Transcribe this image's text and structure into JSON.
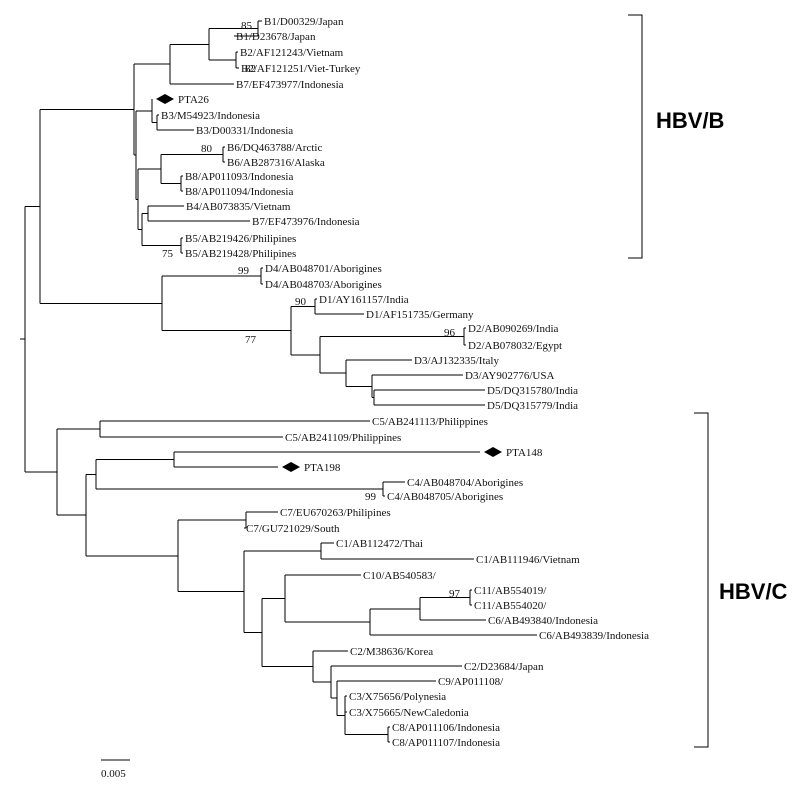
{
  "tree": {
    "type": "phylogenetic-tree",
    "scale_bar_label": "0.005",
    "leaves": [
      {
        "id": "B1_D00329",
        "label": "B1/D00329/Japan"
      },
      {
        "id": "B1_D23678",
        "label": "B1/D23678/Japan"
      },
      {
        "id": "B2_AF121243",
        "label": "B2/AF121243/Vietnam"
      },
      {
        "id": "B2_AF121251",
        "label": "B2/AF121251/Viet-Turkey"
      },
      {
        "id": "B7_EF473977",
        "label": "B7/EF473977/Indonesia"
      },
      {
        "id": "PTA26",
        "label": "PTA26",
        "marker": "diamond"
      },
      {
        "id": "B3_M54923",
        "label": "B3/M54923/Indonesia"
      },
      {
        "id": "B3_D00331",
        "label": "B3/D00331/Indonesia"
      },
      {
        "id": "B6_DQ463788",
        "label": "B6/DQ463788/Arctic"
      },
      {
        "id": "B6_AB287316",
        "label": "B6/AB287316/Alaska"
      },
      {
        "id": "B8_AP011093",
        "label": "B8/AP011093/Indonesia"
      },
      {
        "id": "B8_AP011094",
        "label": "B8/AP011094/Indonesia"
      },
      {
        "id": "B4_AB073835",
        "label": "B4/AB073835/Vietnam"
      },
      {
        "id": "B7_EF473976",
        "label": "B7/EF473976/Indonesia"
      },
      {
        "id": "B5_AB219426",
        "label": "B5/AB219426/Philipines"
      },
      {
        "id": "B5_AB219428",
        "label": "B5/AB219428/Philipines"
      },
      {
        "id": "D4_AB048701",
        "label": "D4/AB048701/Aborigines"
      },
      {
        "id": "D4_AB048703",
        "label": "D4/AB048703/Aborigines"
      },
      {
        "id": "D1_AY161157",
        "label": "D1/AY161157/India"
      },
      {
        "id": "D1_AF151735",
        "label": "D1/AF151735/Germany"
      },
      {
        "id": "D2_AB090269",
        "label": "D2/AB090269/India"
      },
      {
        "id": "D2_AB078032",
        "label": "D2/AB078032/Egypt"
      },
      {
        "id": "D3_AJ132335",
        "label": "D3/AJ132335/Italy"
      },
      {
        "id": "D3_AY902776",
        "label": "D3/AY902776/USA"
      },
      {
        "id": "D5_DQ315780",
        "label": "D5/DQ315780/India"
      },
      {
        "id": "D5_DQ315779",
        "label": "D5/DQ315779/India"
      },
      {
        "id": "C5_AB241113",
        "label": "C5/AB241113/Philippines"
      },
      {
        "id": "C5_AB241109",
        "label": "C5/AB241109/Philippines"
      },
      {
        "id": "PTA148",
        "label": "PTA148",
        "marker": "diamond"
      },
      {
        "id": "PTA198",
        "label": "PTA198",
        "marker": "diamond"
      },
      {
        "id": "C4_AB048704",
        "label": "C4/AB048704/Aborigines"
      },
      {
        "id": "C4_AB048705",
        "label": "C4/AB048705/Aborigines"
      },
      {
        "id": "C7_EU670263",
        "label": "C7/EU670263/Philipines"
      },
      {
        "id": "C7_GU721029",
        "label": "C7/GU721029/South"
      },
      {
        "id": "C1_AB112472",
        "label": "C1/AB112472/Thai"
      },
      {
        "id": "C1_AB111946",
        "label": "C1/AB111946/Vietnam"
      },
      {
        "id": "C10_AB540583",
        "label": "C10/AB540583/"
      },
      {
        "id": "C11_AB554019",
        "label": "C11/AB554019/"
      },
      {
        "id": "C11_AB554020",
        "label": "C11/AB554020/"
      },
      {
        "id": "C6_AB493840",
        "label": "C6/AB493840/Indonesia"
      },
      {
        "id": "C6_AB493839",
        "label": "C6/AB493839/Indonesia"
      },
      {
        "id": "C2_M38636",
        "label": "C2/M38636/Korea"
      },
      {
        "id": "C2_D23684",
        "label": "C2/D23684/Japan"
      },
      {
        "id": "C9_AP011108",
        "label": "C9/AP011108/"
      },
      {
        "id": "C3_X75656",
        "label": "C3/X75656/Polynesia"
      },
      {
        "id": "C3_X75665",
        "label": "C3/X75665/NewCaledonia"
      },
      {
        "id": "C8_AP011106",
        "label": "C8/AP011106/Indonesia"
      },
      {
        "id": "C8_AP011107",
        "label": "C8/AP011107/Indonesia"
      }
    ],
    "bootstrap": [
      "85",
      "82",
      "80",
      "75",
      "99",
      "90",
      "77",
      "96",
      "99",
      "97"
    ],
    "groups": [
      {
        "id": "hbv_b",
        "label": "HBV/B"
      },
      {
        "id": "hbv_c",
        "label": "HBV/C"
      }
    ]
  }
}
